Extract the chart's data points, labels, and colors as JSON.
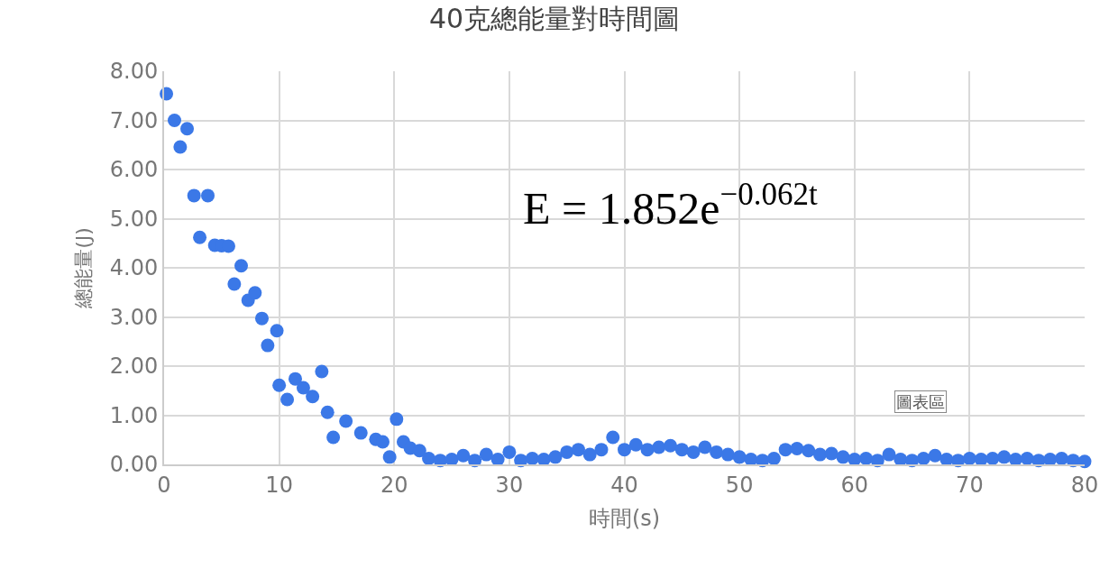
{
  "chart_data": {
    "type": "scatter",
    "title": "40克總能量對時間圖",
    "xlabel": "時間(s)",
    "ylabel": "總能量(J)",
    "annotations": [
      "E = 1.852e$^{−0.062t}$",
      "圖表區"
    ],
    "xlim": [
      0,
      80
    ],
    "xticks": [
      0,
      10,
      20,
      30,
      40,
      50,
      60,
      70,
      80
    ],
    "ylim": [
      0,
      8
    ],
    "yticks": [
      {
        "value": 0,
        "label": "0.00"
      },
      {
        "value": 1,
        "label": "1.00"
      },
      {
        "value": 2,
        "label": "2.00"
      },
      {
        "value": 3,
        "label": "3.00"
      },
      {
        "value": 4,
        "label": "4.00"
      },
      {
        "value": 5,
        "label": "5.00"
      },
      {
        "value": 6,
        "label": "6.00"
      },
      {
        "value": 7,
        "label": "7.00"
      },
      {
        "value": 8,
        "label": "8.00"
      }
    ],
    "grid": true,
    "marker": "circle",
    "series": [
      {
        "color": "#3b78e7",
        "x": [
          0.2,
          0.9,
          1.4,
          2.0,
          2.6,
          3.1,
          3.8,
          4.4,
          5.0,
          5.6,
          6.1,
          6.7,
          7.3,
          7.9,
          8.5,
          9.0,
          9.8,
          10.0,
          10.7,
          11.4,
          12.1,
          12.9,
          13.7,
          14.2,
          14.7,
          15.8,
          17.1,
          18.4,
          19.0,
          19.6,
          20.2,
          20.8,
          21.4,
          22.2,
          23,
          24,
          25,
          26,
          27,
          28,
          29,
          30,
          31,
          32,
          33,
          34,
          35,
          36,
          37,
          38,
          39,
          40,
          41,
          42,
          43,
          44,
          45,
          46,
          47,
          48,
          49,
          50,
          51,
          52,
          53,
          54,
          55,
          56,
          57,
          58,
          59,
          60,
          61,
          62,
          63,
          64,
          65,
          66,
          67,
          68,
          69,
          70,
          71,
          72,
          73,
          74,
          75,
          76,
          77,
          78,
          79,
          80
        ],
        "values": [
          7.54,
          7.0,
          6.46,
          6.83,
          5.47,
          4.62,
          5.47,
          4.46,
          4.45,
          4.44,
          3.67,
          4.04,
          3.34,
          3.49,
          2.97,
          2.42,
          2.72,
          1.61,
          1.32,
          1.74,
          1.56,
          1.38,
          1.89,
          1.06,
          0.55,
          0.88,
          0.64,
          0.51,
          0.46,
          0.15,
          0.92,
          0.46,
          0.33,
          0.28,
          0.12,
          0.08,
          0.1,
          0.18,
          0.08,
          0.2,
          0.1,
          0.25,
          0.08,
          0.12,
          0.1,
          0.15,
          0.25,
          0.3,
          0.2,
          0.3,
          0.55,
          0.3,
          0.4,
          0.3,
          0.35,
          0.38,
          0.3,
          0.25,
          0.35,
          0.25,
          0.2,
          0.15,
          0.1,
          0.08,
          0.12,
          0.3,
          0.32,
          0.28,
          0.2,
          0.22,
          0.15,
          0.1,
          0.12,
          0.08,
          0.2,
          0.1,
          0.08,
          0.12,
          0.18,
          0.1,
          0.08,
          0.12,
          0.1,
          0.12,
          0.15,
          0.1,
          0.12,
          0.08,
          0.1,
          0.12,
          0.08,
          0.06
        ]
      }
    ]
  }
}
